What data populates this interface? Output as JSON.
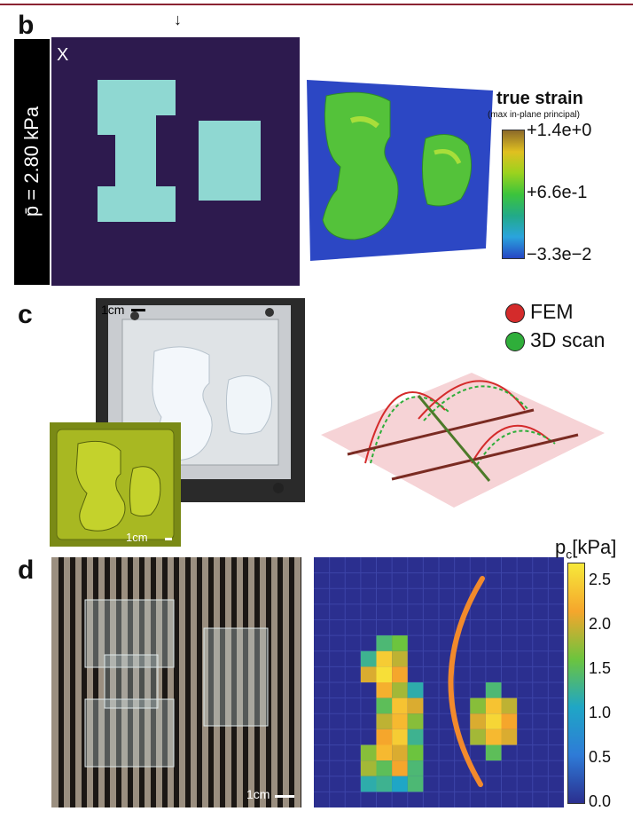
{
  "panels": {
    "b": {
      "letter": "b",
      "pressure_label": "p̄ = 2.80 kPa",
      "x_label": "X",
      "colorbar": {
        "title": "true strain",
        "subtitle": "(max in-plane principal)",
        "max": "+1.4e+0",
        "mid": "+6.6e-1",
        "min": "−3.3e−2",
        "colors": [
          "#8c6a2a",
          "#e0c020",
          "#9bd21e",
          "#3cc43c",
          "#22aa88",
          "#2aa4dd",
          "#2646c4"
        ]
      }
    },
    "c": {
      "letter": "c",
      "scale_top": "1cm",
      "scale_bottom": "1cm",
      "legend": [
        {
          "label": "FEM",
          "color": "#d42b2b"
        },
        {
          "label": "3D scan",
          "color": "#2fae3a"
        }
      ]
    },
    "d": {
      "letter": "d",
      "scale": "1cm",
      "colorbar": {
        "title_main": "p",
        "title_sub": "c",
        "title_unit": "[kPa]",
        "ticks": [
          "2.5",
          "2.0",
          "1.5",
          "1.0",
          "0.5",
          "0.0"
        ]
      }
    }
  },
  "chart_data": {
    "type": "heatmap",
    "title": "",
    "colorbar_label": "p_c [kPa]",
    "colorbar_range": [
      0.0,
      2.7
    ],
    "grid": [
      16,
      16
    ],
    "background_value": 0.0,
    "cells": [
      {
        "r": 5,
        "c": 4,
        "v": 1.3
      },
      {
        "r": 5,
        "c": 5,
        "v": 1.5
      },
      {
        "r": 6,
        "c": 3,
        "v": 1.2
      },
      {
        "r": 6,
        "c": 4,
        "v": 2.4
      },
      {
        "r": 6,
        "c": 5,
        "v": 1.8
      },
      {
        "r": 7,
        "c": 3,
        "v": 1.9
      },
      {
        "r": 7,
        "c": 4,
        "v": 2.6
      },
      {
        "r": 7,
        "c": 5,
        "v": 2.0
      },
      {
        "r": 8,
        "c": 4,
        "v": 2.1
      },
      {
        "r": 8,
        "c": 5,
        "v": 1.7
      },
      {
        "r": 8,
        "c": 6,
        "v": 1.1
      },
      {
        "r": 9,
        "c": 4,
        "v": 1.4
      },
      {
        "r": 9,
        "c": 5,
        "v": 2.3
      },
      {
        "r": 9,
        "c": 6,
        "v": 1.9
      },
      {
        "r": 10,
        "c": 4,
        "v": 1.8
      },
      {
        "r": 10,
        "c": 5,
        "v": 2.2
      },
      {
        "r": 10,
        "c": 6,
        "v": 1.6
      },
      {
        "r": 11,
        "c": 4,
        "v": 2.0
      },
      {
        "r": 11,
        "c": 5,
        "v": 2.4
      },
      {
        "r": 11,
        "c": 6,
        "v": 1.2
      },
      {
        "r": 12,
        "c": 3,
        "v": 1.6
      },
      {
        "r": 12,
        "c": 4,
        "v": 2.2
      },
      {
        "r": 12,
        "c": 5,
        "v": 1.9
      },
      {
        "r": 12,
        "c": 6,
        "v": 1.5
      },
      {
        "r": 13,
        "c": 3,
        "v": 1.7
      },
      {
        "r": 13,
        "c": 4,
        "v": 1.4
      },
      {
        "r": 13,
        "c": 5,
        "v": 2.0
      },
      {
        "r": 13,
        "c": 6,
        "v": 1.3
      },
      {
        "r": 14,
        "c": 3,
        "v": 1.1
      },
      {
        "r": 14,
        "c": 4,
        "v": 1.2
      },
      {
        "r": 14,
        "c": 5,
        "v": 1.0
      },
      {
        "r": 14,
        "c": 6,
        "v": 1.3
      },
      {
        "r": 8,
        "c": 11,
        "v": 1.3
      },
      {
        "r": 9,
        "c": 10,
        "v": 1.6
      },
      {
        "r": 9,
        "c": 11,
        "v": 2.3
      },
      {
        "r": 9,
        "c": 12,
        "v": 1.8
      },
      {
        "r": 10,
        "c": 10,
        "v": 1.9
      },
      {
        "r": 10,
        "c": 11,
        "v": 2.5
      },
      {
        "r": 10,
        "c": 12,
        "v": 2.0
      },
      {
        "r": 11,
        "c": 10,
        "v": 1.7
      },
      {
        "r": 11,
        "c": 11,
        "v": 2.2
      },
      {
        "r": 11,
        "c": 12,
        "v": 1.9
      },
      {
        "r": 12,
        "c": 11,
        "v": 1.4
      }
    ]
  }
}
